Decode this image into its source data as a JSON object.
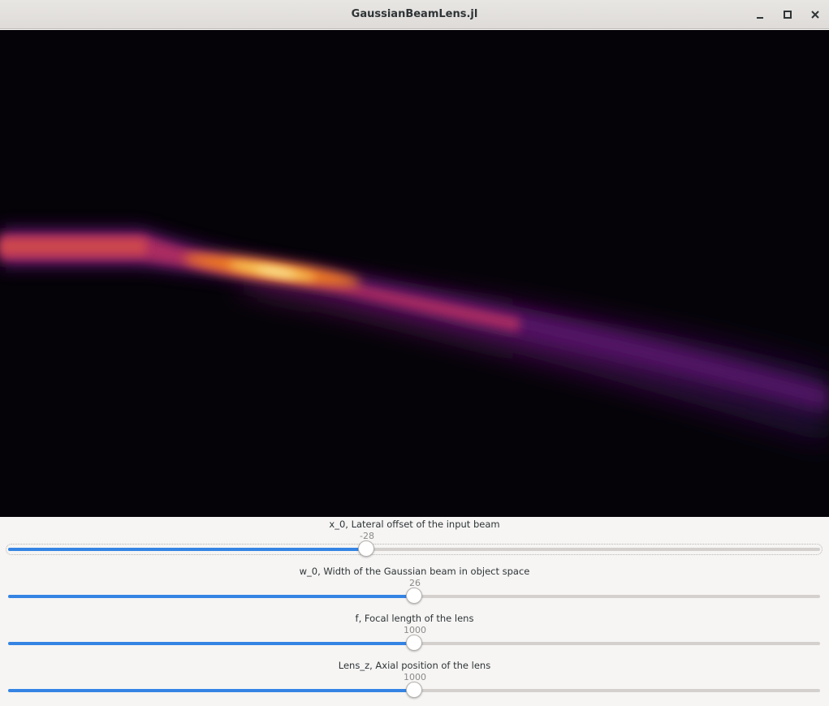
{
  "window": {
    "title": "GaussianBeamLens.jl",
    "buttons": {
      "minimize": "minimize-icon",
      "maximize": "maximize-icon",
      "close": "close-icon"
    }
  },
  "plot": {
    "colormap": "inferno",
    "background": "#050308"
  },
  "sliders": [
    {
      "label": "x_0, Lateral offset of the input beam",
      "value": "-28",
      "fraction": 0.441,
      "focused": true
    },
    {
      "label": "w_0, Width of the Gaussian beam in object space",
      "value": "26",
      "fraction": 0.5,
      "focused": false
    },
    {
      "label": "f, Focal length of the lens",
      "value": "1000",
      "fraction": 0.5,
      "focused": false
    },
    {
      "label": "Lens_z, Axial position of the lens",
      "value": "1000",
      "fraction": 0.5,
      "focused": false
    }
  ],
  "colors": {
    "accent": "#3584e4",
    "track": "#d3d0cd"
  }
}
